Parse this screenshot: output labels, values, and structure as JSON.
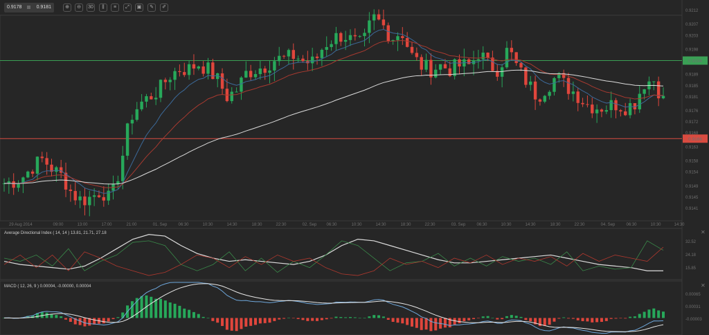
{
  "toolbar": {
    "bid": "0.9178",
    "ask": "0.9181",
    "buttons": [
      {
        "icon": "zoom-in-icon",
        "glyph": "⊕"
      },
      {
        "icon": "zoom-out-icon",
        "glyph": "⊖"
      },
      {
        "icon": "timeframe-icon",
        "glyph": "30"
      },
      {
        "icon": "chart-type-icon",
        "glyph": "⫼"
      },
      {
        "icon": "indicators-icon",
        "glyph": "≡"
      },
      {
        "icon": "draw-icon",
        "glyph": "⤢"
      },
      {
        "icon": "layers-icon",
        "glyph": "▣"
      },
      {
        "icon": "edit-icon",
        "glyph": "✎"
      },
      {
        "icon": "pen-icon",
        "glyph": "✐"
      }
    ]
  },
  "colors": {
    "background": "#262626",
    "up": "#27a85a",
    "down": "#e0463c",
    "ma_fast": "#3c6a9a",
    "ma_mid": "#a83a30",
    "ma_slow": "#dcdcdc",
    "support": "#d94b40",
    "resistance": "#3aa055"
  },
  "chart_data": [
    {
      "type": "candlestick",
      "pair_pane": "price",
      "y_ticks": [
        "0.9212",
        "0.9207",
        "0.9203",
        "0.9198",
        "0.9194",
        "0.9189",
        "0.9185",
        "0.9181",
        "0.9176",
        "0.9172",
        "0.9168",
        "0.9166",
        "0.9163",
        "0.9158",
        "0.9154",
        "0.9149",
        "0.9145",
        "0.9141"
      ],
      "ylim": [
        0.9141,
        0.9212
      ],
      "x_ticks": [
        "29 Aug 2014",
        "09:00",
        "13:00",
        "17:00",
        "21:00",
        "01. Sep",
        "06:30",
        "10:30",
        "14:30",
        "18:30",
        "22:30",
        "02. Sep",
        "06:30",
        "10:30",
        "14:30",
        "18:30",
        "22:30",
        "03. Sep",
        "06:30",
        "10:30",
        "14:30",
        "18:30",
        "22:30",
        "04. Sep",
        "06:30",
        "10:30",
        "14:30"
      ],
      "closes": [
        0.915,
        0.91507,
        0.91525,
        0.91562,
        0.91587,
        0.9155,
        0.91525,
        0.91463,
        0.91438,
        0.9145,
        0.91475,
        0.91438,
        0.91562,
        0.91736,
        0.91785,
        0.9181,
        0.91835,
        0.91884,
        0.91909,
        0.91909,
        0.91929,
        0.91909,
        0.91872,
        0.9181,
        0.91835,
        0.91897,
        0.91909,
        0.91922,
        0.91946,
        0.91946,
        0.91959,
        0.91934,
        0.91934,
        0.91996,
        0.92021,
        0.92033,
        0.92008,
        0.91996,
        0.92095,
        0.9207,
        0.92021,
        0.92046,
        0.91959,
        0.91922,
        0.91909,
        0.91922,
        0.91909,
        0.91922,
        0.91922,
        0.91971,
        0.91922,
        0.91909,
        0.91984,
        0.91909,
        0.9186,
        0.9181,
        0.91847,
        0.91884,
        0.91847,
        0.91822,
        0.91785,
        0.91773,
        0.91773,
        0.91785,
        0.91773,
        0.91785,
        0.9186,
        0.91872,
        0.91798
      ],
      "horizontal_lines": [
        {
          "label": "0.9194",
          "value": 0.9194,
          "role": "resistance"
        },
        {
          "label": "0.9166",
          "value": 0.9166,
          "role": "support"
        }
      ]
    },
    {
      "type": "line",
      "title": "Average Directional Index ( 14, 14 ) 13.81, 21.71, 27.18",
      "y_ticks": [
        "32.52",
        "24.18",
        "15.85"
      ],
      "ylim": [
        10,
        38
      ],
      "series": [
        {
          "color": "#dcdcdc",
          "values": [
            20,
            18,
            17,
            16,
            15,
            17,
            22,
            28,
            34,
            37,
            36,
            30,
            25,
            22,
            20,
            21,
            20,
            19,
            18,
            20,
            24,
            30,
            34,
            33,
            30,
            27,
            24,
            21,
            19,
            19,
            20,
            21,
            22,
            23,
            24,
            22,
            20,
            18,
            17,
            16,
            14,
            14
          ]
        },
        {
          "color": "#3a8a4a",
          "values": [
            22,
            20,
            24,
            17,
            28,
            14,
            20,
            24,
            32,
            33,
            30,
            18,
            14,
            18,
            26,
            14,
            22,
            13,
            20,
            16,
            24,
            33,
            30,
            22,
            14,
            19,
            20,
            25,
            17,
            22,
            17,
            23,
            20,
            22,
            18,
            26,
            14,
            17,
            15,
            16,
            33,
            27
          ]
        },
        {
          "color": "#b0382e",
          "values": [
            18,
            24,
            16,
            24,
            14,
            26,
            22,
            17,
            14,
            11,
            13,
            18,
            24,
            22,
            16,
            23,
            18,
            24,
            20,
            22,
            16,
            12,
            11,
            14,
            22,
            18,
            20,
            16,
            22,
            19,
            24,
            18,
            22,
            20,
            23,
            17,
            25,
            20,
            24,
            22,
            20,
            29
          ]
        }
      ]
    },
    {
      "type": "macd",
      "title": "MACD ( 12, 26, 9 ) 0.00004, -0.00000, 0.00004",
      "y_ticks": [
        "0.00065",
        "0.00031",
        "-0.00003"
      ],
      "ylim": [
        -0.0003,
        0.00095
      ]
    }
  ]
}
